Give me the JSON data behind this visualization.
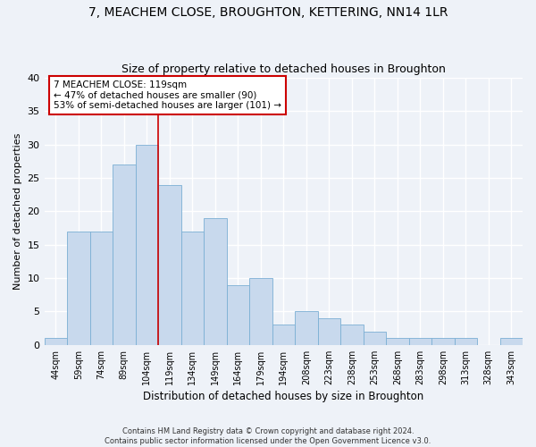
{
  "title": "7, MEACHEM CLOSE, BROUGHTON, KETTERING, NN14 1LR",
  "subtitle": "Size of property relative to detached houses in Broughton",
  "xlabel": "Distribution of detached houses by size in Broughton",
  "ylabel": "Number of detached properties",
  "bar_color": "#c8d9ed",
  "bar_edge_color": "#7bafd4",
  "categories": [
    "44sqm",
    "59sqm",
    "74sqm",
    "89sqm",
    "104sqm",
    "119sqm",
    "134sqm",
    "149sqm",
    "164sqm",
    "179sqm",
    "194sqm",
    "208sqm",
    "223sqm",
    "238sqm",
    "253sqm",
    "268sqm",
    "283sqm",
    "298sqm",
    "313sqm",
    "328sqm",
    "343sqm"
  ],
  "values": [
    1,
    17,
    17,
    27,
    30,
    24,
    17,
    19,
    9,
    10,
    3,
    5,
    4,
    3,
    2,
    1,
    1,
    1,
    1,
    0,
    1
  ],
  "ylim": [
    0,
    40
  ],
  "yticks": [
    0,
    5,
    10,
    15,
    20,
    25,
    30,
    35,
    40
  ],
  "vline_index": 5,
  "annotation_line1": "7 MEACHEM CLOSE: 119sqm",
  "annotation_line2": "← 47% of detached houses are smaller (90)",
  "annotation_line3": "53% of semi-detached houses are larger (101) →",
  "annotation_box_color": "#ffffff",
  "annotation_box_edge_color": "#cc0000",
  "vline_color": "#cc0000",
  "footnote1": "Contains HM Land Registry data © Crown copyright and database right 2024.",
  "footnote2": "Contains public sector information licensed under the Open Government Licence v3.0.",
  "background_color": "#eef2f8",
  "grid_color": "#ffffff"
}
